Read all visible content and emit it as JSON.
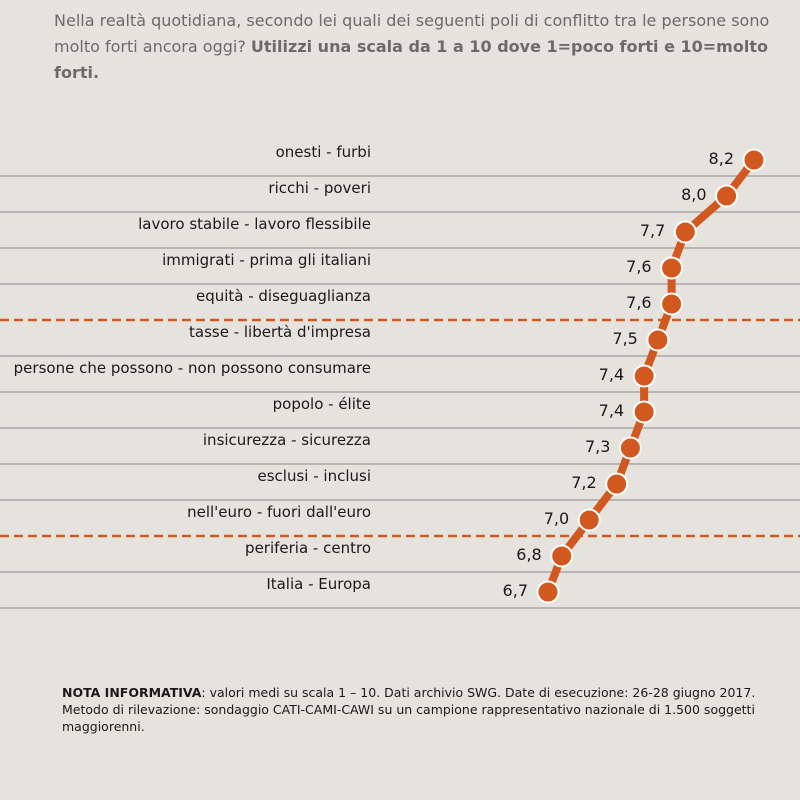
{
  "question": {
    "text": "Nella realtà quotidiana, secondo lei quali dei seguenti poli di conflitto tra le persone sono molto forti ancora oggi? ",
    "bold": "Utilizzi una scala da 1 a 10 dove 1=poco forti e 10=molto forti."
  },
  "chart_data": {
    "type": "line",
    "orientation": "horizontal",
    "categories": [
      "onesti - furbi",
      "ricchi - poveri",
      "lavoro stabile - lavoro flessibile",
      "immigrati - prima gli italiani",
      "equità - diseguaglianza",
      "tasse - libertà d'impresa",
      "persone che possono - non possono consumare",
      "popolo - élite",
      "insicurezza - sicurezza",
      "esclusi - inclusi",
      "nell'euro - fuori dall'euro",
      "periferia - centro",
      "Italia - Europa"
    ],
    "values": [
      8.2,
      8.0,
      7.7,
      7.6,
      7.6,
      7.5,
      7.4,
      7.4,
      7.3,
      7.2,
      7.0,
      6.8,
      6.7
    ],
    "value_labels": [
      "8,2",
      "8,0",
      "7,7",
      "7,6",
      "7,6",
      "7,5",
      "7,4",
      "7,4",
      "7,3",
      "7,2",
      "7,0",
      "6,8",
      "6,7"
    ],
    "dashed_separators_after": [
      "equità - diseguaglianza",
      "nell'euro - fuori dall'euro"
    ],
    "colors": {
      "line": "#d1581e",
      "separator": "#d1581e",
      "rule": "#8a8a8a"
    }
  },
  "note": {
    "bold": "NOTA INFORMATIVA",
    "text": ": valori medi su scala 1 – 10. Dati archivio SWG. Date di esecuzione: 26-28 giugno 2017. Metodo di rilevazione: sondaggio CATI-CAMI-CAWI su un campione rappresentativo nazionale di 1.500 soggetti maggiorenni."
  }
}
